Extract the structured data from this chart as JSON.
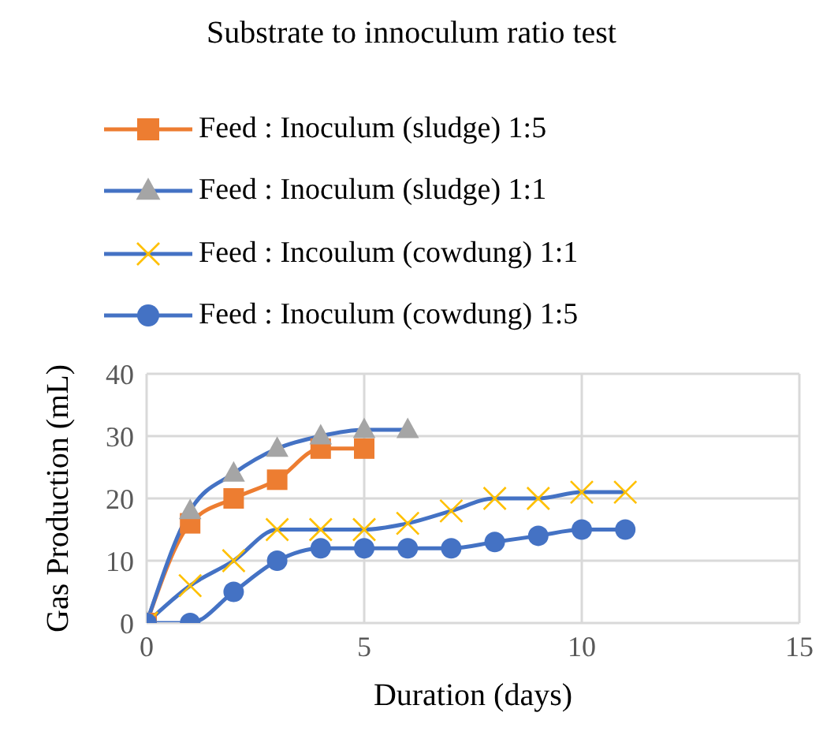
{
  "chart_data": {
    "type": "line",
    "title": "Substrate to innoculum ratio test",
    "xlabel": "Duration (days)",
    "ylabel": "Gas Production (mL)",
    "x": [
      0,
      1,
      2,
      3,
      4,
      5,
      6,
      7,
      8,
      9,
      10,
      11
    ],
    "series": [
      {
        "name": "Feed : Inoculum (sludge) 1:5",
        "color": "#ed7d31",
        "marker": "square",
        "colors": [
          "#ed7d31",
          "#ed7d31",
          "#ed7d31",
          "#ed7d31",
          "#ed7d31",
          "#ed7d31",
          null,
          null,
          null,
          null,
          null,
          null
        ],
        "values": [
          0,
          16,
          20,
          23,
          28,
          28,
          null,
          null,
          null,
          null,
          null,
          null
        ]
      },
      {
        "name": "Feed : Inoculum (sludge) 1:1",
        "color": "#4472c4",
        "marker": "triangle",
        "colors": [
          "#a5a5a5",
          "#a5a5a5",
          "#a5a5a5",
          "#a5a5a5",
          "#a5a5a5",
          "#a5a5a5",
          "#a5a5a5",
          null,
          null,
          null,
          null,
          null
        ],
        "values": [
          0,
          18,
          24,
          28,
          30,
          31,
          31,
          null,
          null,
          null,
          null,
          null
        ]
      },
      {
        "name": "Feed : Incoulum (cowdung) 1:1",
        "color": "#4472c4",
        "marker": "cross",
        "colors": [
          "#ffc000",
          "#ffc000",
          "#ffc000",
          "#ffc000",
          "#ffc000",
          "#ffc000",
          "#ffc000",
          "#ffc000",
          "#ffc000",
          "#ffc000",
          "#ffc000",
          "#ffc000"
        ],
        "values": [
          0,
          6,
          10,
          15,
          15,
          15,
          16,
          18,
          20,
          20,
          21,
          21
        ]
      },
      {
        "name": "Feed : Inoculum (cowdung) 1:5",
        "color": "#4472c4",
        "marker": "circle",
        "colors": [
          "#4472c4",
          "#4472c4",
          "#4472c4",
          "#4472c4",
          "#4472c4",
          "#4472c4",
          "#4472c4",
          "#4472c4",
          "#4472c4",
          "#4472c4",
          "#4472c4",
          "#4472c4"
        ],
        "values": [
          0,
          0,
          5,
          10,
          12,
          12,
          12,
          12,
          13,
          14,
          15,
          15
        ]
      }
    ],
    "xlim": [
      0,
      15
    ],
    "xticks": [
      0,
      5,
      10,
      15
    ],
    "ylim": [
      0,
      40
    ],
    "yticks": [
      0,
      10,
      20,
      30,
      40
    ],
    "grid": true,
    "legend": "top"
  }
}
